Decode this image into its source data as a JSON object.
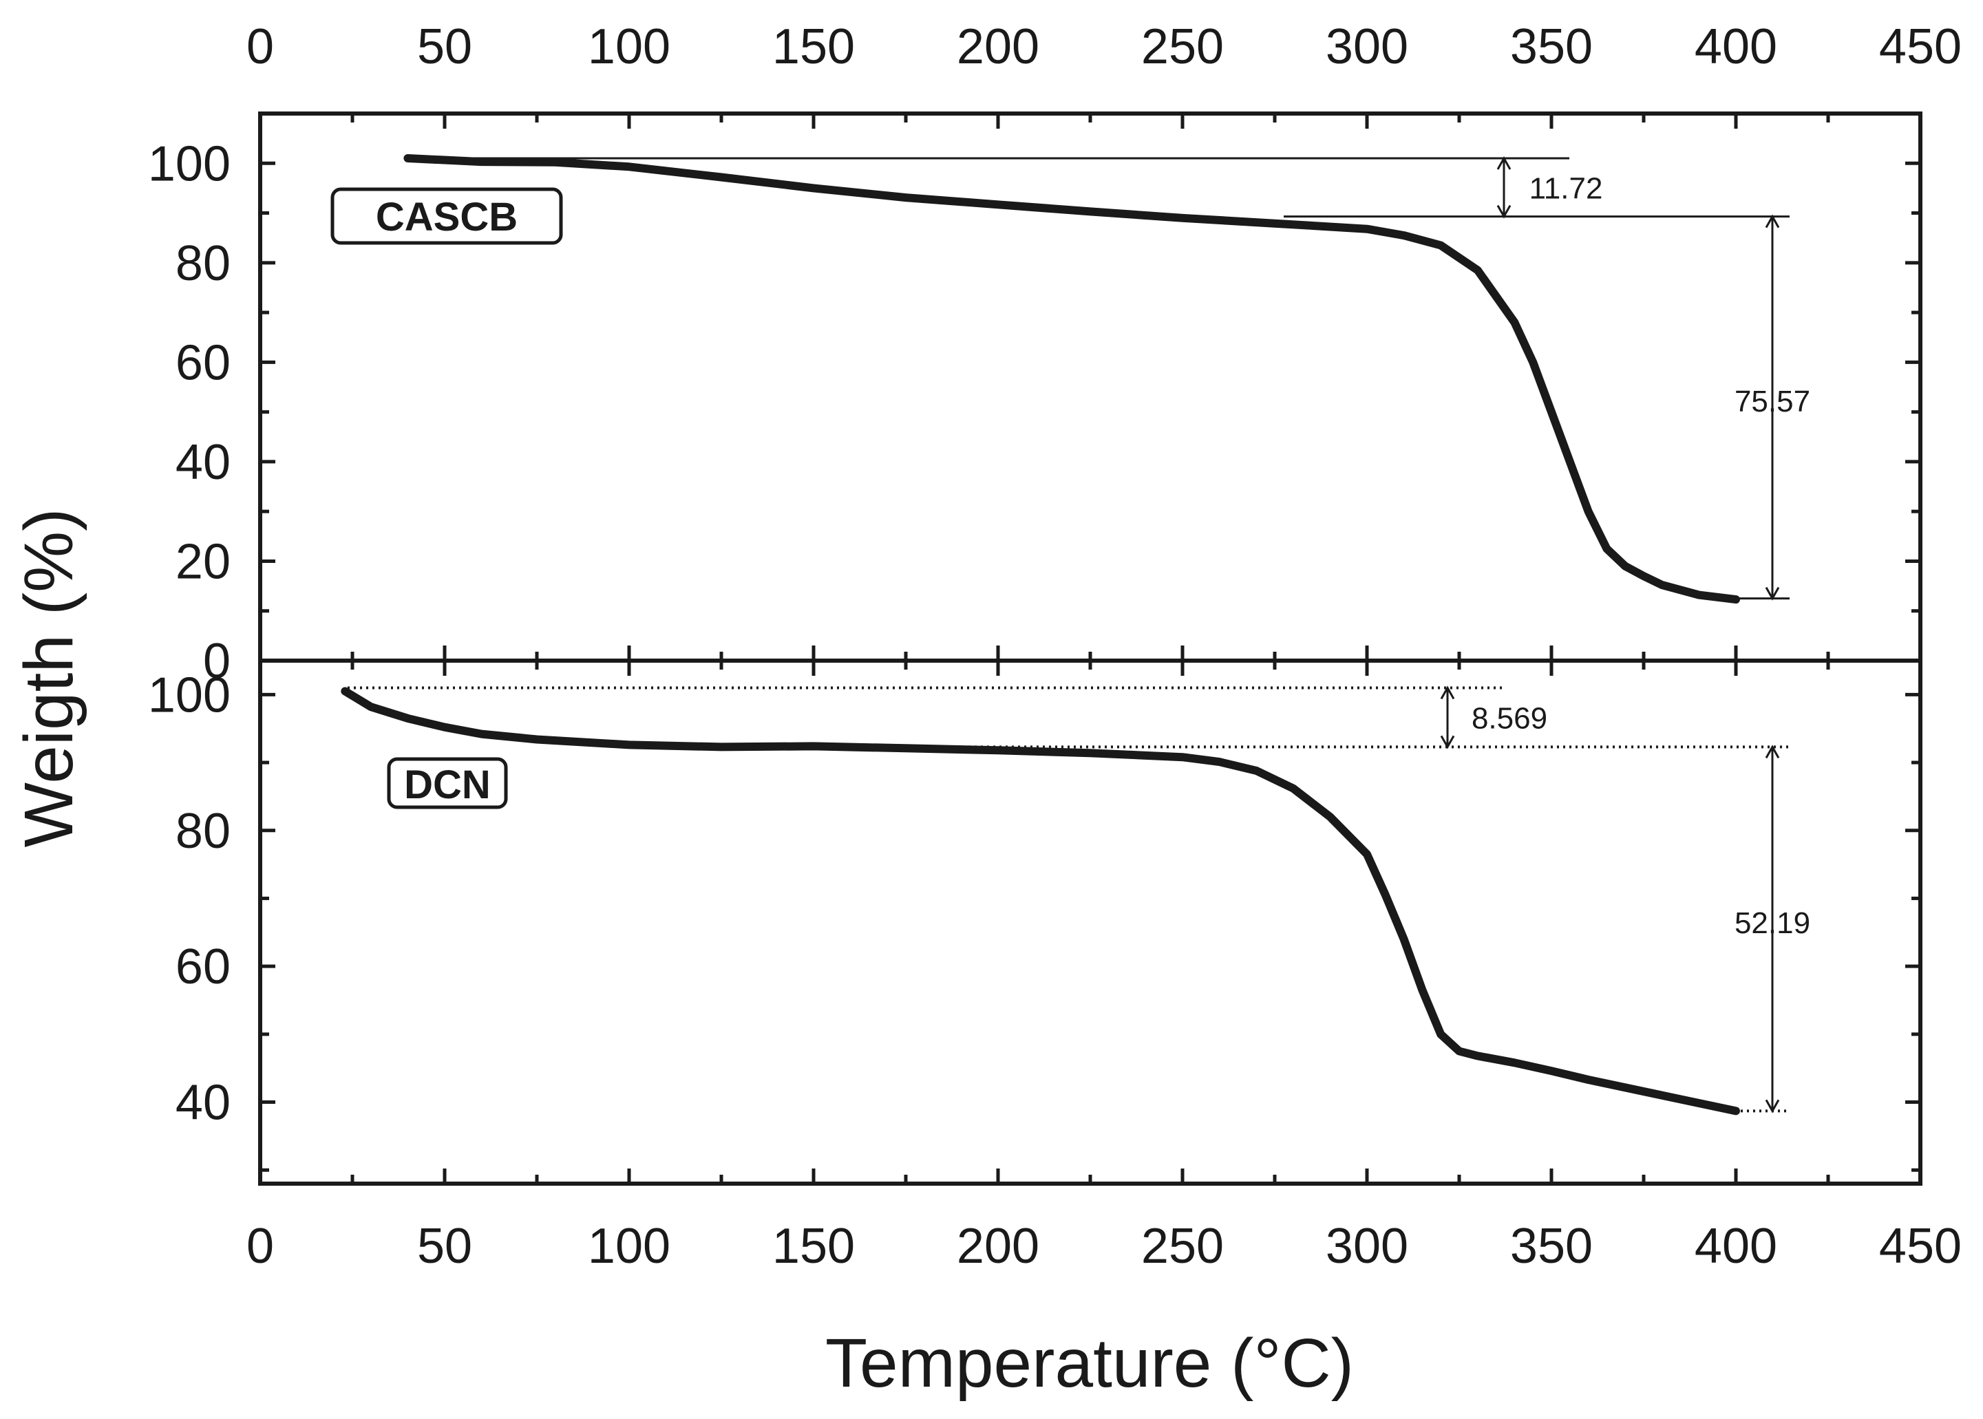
{
  "chart_data": [
    {
      "type": "line",
      "panel": "top",
      "series": [
        {
          "name": "CASCB",
          "x": [
            40,
            60,
            80,
            100,
            125,
            150,
            175,
            200,
            225,
            250,
            275,
            300,
            310,
            320,
            330,
            340,
            345,
            350,
            355,
            360,
            365,
            370,
            375,
            380,
            390,
            400
          ],
          "y": [
            101.0,
            100.3,
            100.2,
            99.3,
            97.2,
            95.0,
            93.1,
            91.7,
            90.3,
            89.0,
            87.9,
            86.8,
            85.5,
            83.5,
            78.5,
            68.0,
            60.0,
            50.0,
            40.0,
            30.0,
            22.5,
            19.0,
            17.0,
            15.2,
            13.2,
            12.3
          ]
        }
      ],
      "annotations": [
        {
          "label": "11.72",
          "from": 101.0,
          "to": 89.3
        },
        {
          "label": "75.57",
          "from": 89.3,
          "to": 12.5
        }
      ],
      "sample_label": "CASCB",
      "xlim": [
        0,
        450
      ],
      "ylim": [
        0,
        110
      ],
      "x_ticks": [
        "0",
        "50",
        "100",
        "150",
        "200",
        "250",
        "300",
        "350",
        "400",
        "450"
      ],
      "y_ticks": [
        "0",
        "20",
        "40",
        "60",
        "80",
        "100"
      ]
    },
    {
      "type": "line",
      "panel": "bottom",
      "series": [
        {
          "name": "DCN",
          "x": [
            23,
            30,
            40,
            50,
            60,
            75,
            100,
            125,
            150,
            175,
            200,
            225,
            250,
            260,
            270,
            280,
            290,
            300,
            305,
            310,
            315,
            320,
            325,
            330,
            340,
            350,
            360,
            380,
            400
          ],
          "y": [
            100.5,
            98.2,
            96.5,
            95.2,
            94.2,
            93.4,
            92.6,
            92.3,
            92.4,
            92.1,
            91.8,
            91.4,
            90.8,
            90.1,
            88.8,
            86.2,
            82.0,
            76.5,
            70.5,
            64.0,
            56.5,
            50.0,
            47.5,
            46.8,
            45.8,
            44.6,
            43.3,
            41.0,
            38.7
          ]
        }
      ],
      "annotations": [
        {
          "label": "8.569",
          "from": 101.0,
          "to": 92.3
        },
        {
          "label": "52.19",
          "from": 92.3,
          "to": 38.7
        }
      ],
      "sample_label": "DCN",
      "xlim": [
        0,
        450
      ],
      "ylim": [
        28,
        105
      ],
      "x_ticks": [
        "0",
        "50",
        "100",
        "150",
        "200",
        "250",
        "300",
        "350",
        "400",
        "450"
      ],
      "y_ticks": [
        "40",
        "60",
        "80",
        "100"
      ]
    }
  ],
  "xlabel": "Temperature (°C)",
  "ylabel": "Weigth (%)"
}
